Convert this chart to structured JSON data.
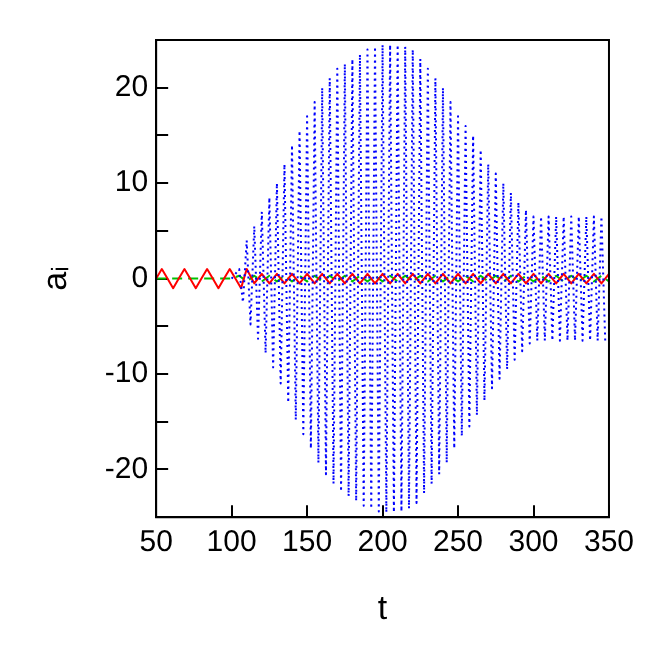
{
  "chart_data": {
    "type": "line",
    "xlabel": "t",
    "ylabel": "aᵢ",
    "xlim": [
      50,
      350
    ],
    "ylim": [
      -25,
      25
    ],
    "xticks": [
      50,
      100,
      150,
      200,
      250,
      300,
      350
    ],
    "yticks": [
      -20,
      {
        "value": -15,
        "label": null
      },
      -10,
      {
        "value": -5,
        "label": null
      },
      0,
      {
        "value": 5,
        "label": null
      },
      10,
      {
        "value": 15,
        "label": null
      },
      20
    ],
    "grid": false,
    "marker": "none",
    "series": [
      {
        "color": "#0000ff",
        "line_style": "dotted",
        "x": [
          100,
          105,
          107.5,
          110,
          112.5,
          115,
          117.5,
          120,
          122.5,
          125,
          127.5,
          130,
          132.5,
          135,
          137.5,
          140,
          142.5,
          145,
          147.5,
          150,
          152.5,
          155,
          157.5,
          160,
          162.5,
          165,
          167.5,
          170,
          172.5,
          175,
          177.5,
          180,
          182.5,
          185,
          187.5,
          190,
          192.5,
          195,
          197.5,
          200,
          202.5,
          205,
          207.5,
          210,
          212.5,
          215,
          217.5,
          220,
          222.5,
          225,
          227.5,
          230,
          232.5,
          235,
          237.5,
          240,
          242.5,
          245,
          247.5,
          250,
          252.5,
          255,
          257.5,
          260,
          262.5,
          265,
          267.5,
          270,
          272.5,
          275,
          277.5,
          280,
          282.5,
          285,
          287.5,
          290,
          292.5,
          295,
          297.5,
          300,
          302.5,
          305,
          307.5,
          310,
          312.5,
          315,
          317.5,
          320,
          322.5,
          325,
          327.5,
          330,
          332.5,
          335,
          337.5,
          340,
          342.5,
          345,
          347.5
        ],
        "values": [
          0,
          1,
          -2.5,
          4,
          -4.8,
          5.5,
          -6.3,
          7,
          -7.8,
          8.5,
          -9.3,
          10,
          -11,
          12,
          -13,
          14,
          -14.8,
          15.5,
          -16.3,
          17,
          -17.8,
          18.5,
          -19.3,
          20,
          -20.5,
          21,
          -21.5,
          22,
          -22.3,
          22.5,
          -22.8,
          23,
          -23.3,
          23.5,
          -23.8,
          24,
          -24.1,
          24.3,
          -24.4,
          24.5,
          -24.5,
          24.5,
          -24.5,
          24.5,
          -24.4,
          24.3,
          -24.1,
          24,
          -23.5,
          23,
          -22.5,
          22,
          -21.5,
          21,
          -20.5,
          20,
          -19.3,
          18.5,
          -17.8,
          17,
          -16.5,
          16,
          -15.5,
          15,
          -14.3,
          13.5,
          -12.8,
          12,
          -11.5,
          11,
          -10.5,
          10,
          -9.5,
          9,
          -8.5,
          8,
          -7.6,
          7.2,
          -6.8,
          6.5,
          -6.5,
          6.5,
          -6.5,
          6.5,
          -6.5,
          6.5,
          -6.5,
          6.5,
          -6.5,
          6.5,
          -6.5,
          6.5,
          -6.5,
          6.5,
          -6.5,
          6.5,
          -6.5,
          6.5,
          -6.5
        ]
      },
      {
        "color": "#ff0000",
        "line_style": "solid",
        "x": [
          50,
          53.75,
          57.5,
          61.25,
          65,
          68.75,
          72.5,
          76.25,
          80,
          83.75,
          87.5,
          91.25,
          95,
          98.75,
          102.5,
          106.25,
          110,
          115,
          120,
          125,
          130,
          135,
          140,
          145,
          150,
          155,
          160,
          165,
          170,
          175,
          180,
          185,
          190,
          195,
          200,
          205,
          210,
          215,
          220,
          225,
          230,
          235,
          240,
          245,
          250,
          255,
          260,
          265,
          270,
          275,
          280,
          285,
          290,
          295,
          300,
          305,
          310,
          315,
          320,
          325,
          330,
          335,
          340,
          345,
          350
        ],
        "values": [
          0,
          1,
          0,
          -1,
          0,
          1,
          0,
          -1,
          0,
          1,
          0,
          -1,
          0,
          1,
          0,
          -1,
          1,
          -0.5,
          0.5,
          -0.5,
          0.5,
          -0.5,
          0.5,
          -0.5,
          0.5,
          -0.5,
          0.5,
          -0.5,
          0.5,
          -0.5,
          0.5,
          -0.5,
          0.5,
          -0.5,
          0.5,
          -0.5,
          0.5,
          -0.5,
          0.5,
          -0.5,
          0.5,
          -0.5,
          0.5,
          -0.5,
          0.5,
          -0.5,
          0.5,
          -0.5,
          0.5,
          -0.5,
          0.5,
          -0.5,
          0.5,
          -0.5,
          0.5,
          -0.5,
          0.5,
          -0.5,
          0.5,
          -0.5,
          0.5,
          -0.5,
          0.5,
          -0.5,
          0.5
        ]
      },
      {
        "color": "#00c000",
        "line_style": "dashed",
        "x": [
          50,
          100,
          105,
          110,
          115,
          120,
          125,
          130,
          135,
          140,
          145,
          150,
          155,
          160,
          165,
          170,
          175,
          180,
          185,
          190,
          195,
          200,
          205,
          210,
          215,
          220,
          225,
          230,
          235,
          240,
          245,
          250,
          255,
          260,
          265,
          270,
          275,
          280,
          285,
          290,
          295,
          300,
          305,
          310,
          315,
          320,
          325,
          330,
          335,
          340,
          345,
          350
        ],
        "values": [
          0,
          0,
          0.3,
          -0.3,
          0.3,
          -0.3,
          0.3,
          -0.3,
          0.3,
          -0.3,
          0.3,
          -0.3,
          0.3,
          -0.3,
          0.3,
          -0.3,
          0.3,
          -0.3,
          0.3,
          -0.3,
          0.3,
          -0.3,
          0.3,
          -0.3,
          0.3,
          -0.3,
          0.3,
          -0.3,
          0.3,
          -0.3,
          0.3,
          -0.3,
          0.3,
          -0.3,
          0.3,
          -0.3,
          0.3,
          -0.3,
          0.3,
          -0.3,
          0.3,
          -0.3,
          0.3,
          -0.3,
          0.3,
          -0.3,
          0.3,
          -0.3,
          0.3,
          -0.3,
          0.3,
          -0.3
        ]
      }
    ]
  }
}
